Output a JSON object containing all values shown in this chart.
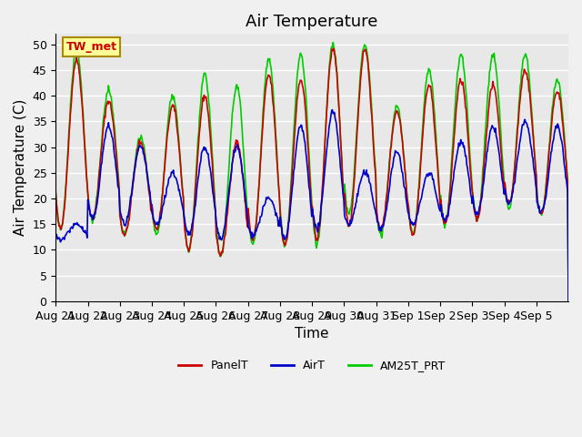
{
  "title": "Air Temperature",
  "xlabel": "Time",
  "ylabel": "Air Temperature (C)",
  "ylim": [
    0,
    52
  ],
  "yticks": [
    0,
    5,
    10,
    15,
    20,
    25,
    30,
    35,
    40,
    45,
    50
  ],
  "x_labels": [
    "Aug 21",
    "Aug 22",
    "Aug 23",
    "Aug 24",
    "Aug 25",
    "Aug 26",
    "Aug 27",
    "Aug 28",
    "Aug 29",
    "Aug 30",
    "Aug 31",
    "Sep 1",
    "Sep 2",
    "Sep 3",
    "Sep 4",
    "Sep 5"
  ],
  "annotation_text": "TW_met",
  "annotation_color": "#cc0000",
  "annotation_bg": "#ffff99",
  "annotation_border": "#aa8800",
  "line_PanelT_color": "#cc0000",
  "line_AirT_color": "#0000cc",
  "line_AM25T_color": "#00cc00",
  "legend_labels": [
    "PanelT",
    "AirT",
    "AM25T_PRT"
  ],
  "plot_bg": "#e8e8e8",
  "fig_bg": "#f0f0f0",
  "grid_color": "white",
  "title_fontsize": 13,
  "axis_label_fontsize": 11,
  "tick_fontsize": 9
}
